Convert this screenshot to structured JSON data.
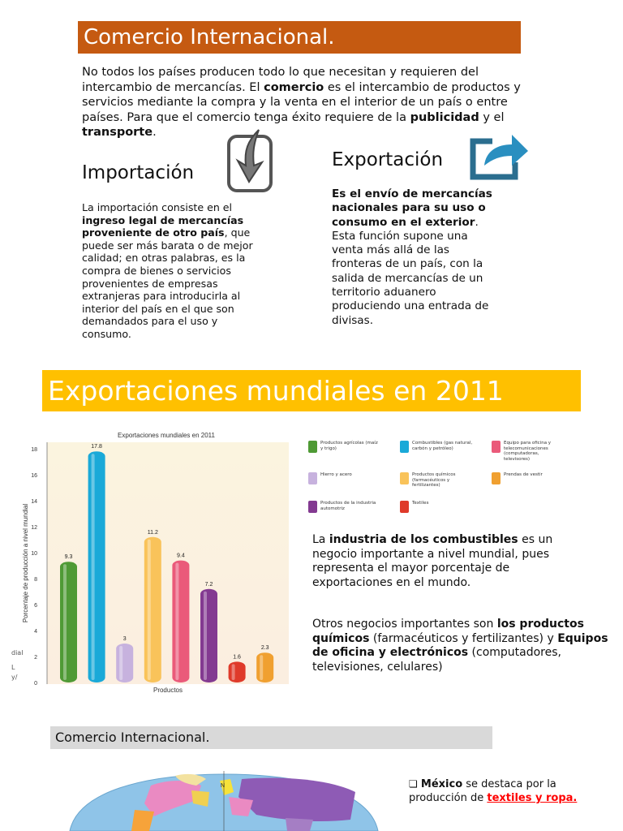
{
  "banner1": "Comercio Internacional.",
  "intro": {
    "t1": "No todos los países producen todo lo que necesitan y requieren del intercambio de mercancías.  El ",
    "b1": "comercio",
    "t2": " es el intercambio de productos y servicios mediante la compra y la venta en el interior de un país o entre países. Para que el comercio tenga éxito requiere de la ",
    "b2": "publicidad",
    "t3": " y el ",
    "b3": "transporte",
    "t4": "."
  },
  "importacion": {
    "heading": "Importación",
    "icon": "download-arrow-icon",
    "t1": "La importación consiste en el ",
    "b1": "ingreso legal de mercancías proveniente de otro país",
    "t2": ", que puede ser más barata o de mejor calidad; en otras palabras, es la compra de bienes o servicios provenientes de empresas extranjeras para introducirla al interior del país en el que son demandados para el uso y consumo."
  },
  "exportacion": {
    "heading": "Exportación",
    "icon": "share-arrow-icon",
    "b1": "Es el envío de mercancías nacionales para su uso o consumo en el exterior",
    "t1": ". Esta función supone una venta más allá de las fronteras de un país, con la salida de mercancías de un territorio aduanero produciendo una entrada de divisas."
  },
  "banner2": "Exportaciones mundiales en 2011",
  "chart_data": {
    "type": "bar",
    "title": "Exportaciones mundiales en 2011",
    "xlabel": "Productos",
    "ylabel": "Porcentaje de producción a nivel mundial",
    "ylim": [
      0,
      18
    ],
    "yticks": [
      0,
      2,
      4,
      6,
      8,
      10,
      12,
      14,
      16,
      18
    ],
    "grid": false,
    "legend_position": "right",
    "values": [
      9.3,
      17.8,
      3,
      11.2,
      9.4,
      7.2,
      1.6,
      2.3
    ],
    "value_labels": [
      "9.3",
      "17.8",
      "3",
      "11.2",
      "9.4",
      "7.2",
      "1.6",
      "2.3"
    ],
    "colors": [
      "#4f9a35",
      "#1aa9d8",
      "#c7b2de",
      "#f9c35a",
      "#ea5a7a",
      "#833a91",
      "#df3a2a",
      "#f0a030"
    ]
  },
  "side_fragments": [
    "dial",
    "L",
    "y/"
  ],
  "legend": [
    {
      "label": "Productos agrícolas (maíz y trigo)",
      "color": "#4f9a35"
    },
    {
      "label": "Combustibles (gas natural, carbón y petróleo)",
      "color": "#1aa9d8"
    },
    {
      "label": "Equipo para oficina y telecomunicaciones (computadoras, televisores)",
      "color": "#ea5a7a"
    },
    {
      "label": "Hierro y acero",
      "color": "#c7b2de"
    },
    {
      "label": "Productos químicos (farmacéuticos y fertilizantes)",
      "color": "#f9c35a"
    },
    {
      "label": "Prendas de vestir",
      "color": "#f0a030"
    },
    {
      "label": "Productos de la industria automotriz",
      "color": "#833a91"
    },
    {
      "label": "Textiles",
      "color": "#df3a2a"
    }
  ],
  "p1": {
    "t1": "La ",
    "b1": "industria de los combustibles",
    "t2": "  es un negocio importante a nivel mundial, pues representa el mayor porcentaje de exportaciones en el mundo."
  },
  "p2": {
    "t1": "Otros negocios importantes son ",
    "b1": "los productos químicos",
    "t2": " (farmacéuticos y fertilizantes) y ",
    "b2": "Equipos de oficina  y electrónicos",
    "t3": " (computadores, televisiones, celulares)"
  },
  "banner3": "Comercio Internacional.",
  "mexico": {
    "b1": "México",
    "t1": " se destaca por la producción de ",
    "red": "textiles y ropa."
  }
}
